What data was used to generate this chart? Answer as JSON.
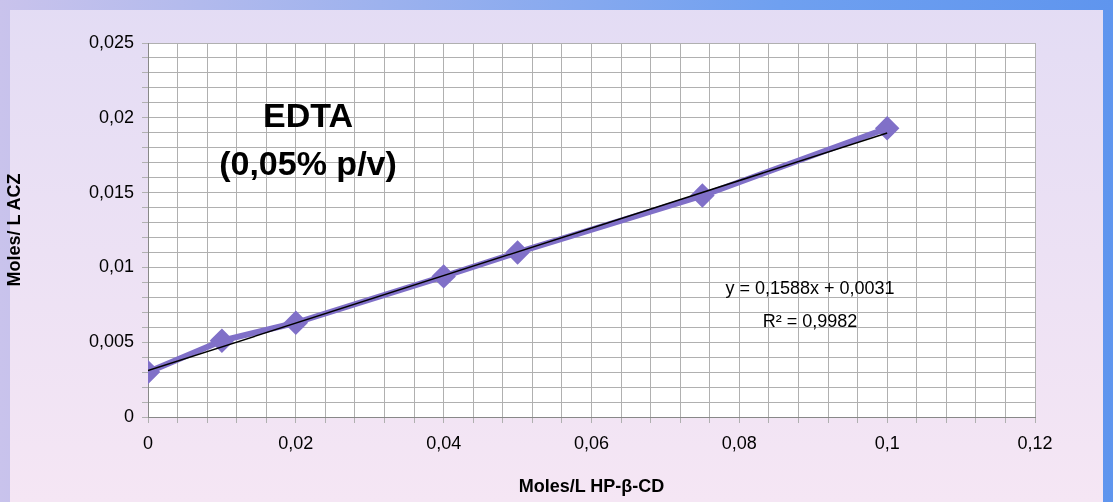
{
  "chart_data": {
    "type": "line",
    "title": "EDTA",
    "subtitle": "(0,05% p/v)",
    "xlabel": "Moles/L HP-β-CD",
    "ylabel": "Moles/ L ACZ",
    "x": [
      0,
      0.01,
      0.02,
      0.04,
      0.05,
      0.075,
      0.1
    ],
    "series": [
      {
        "color": "#8070c8",
        "values": [
          0.003,
          0.0051,
          0.0063,
          0.0094,
          0.011,
          0.0148,
          0.0193
        ],
        "marker": "diamond"
      },
      {
        "type": "line",
        "color": "#000000",
        "x": [
          0,
          0.1
        ],
        "values": [
          0.0031,
          0.01898
        ],
        "marker": "none"
      }
    ],
    "annotations": [
      "y = 0,1588x + 0,0031",
      "R² = 0,9982"
    ],
    "xlim": [
      0,
      0.12
    ],
    "xticks": [
      {
        "value": 0,
        "label": "0"
      },
      {
        "value": 0.004,
        "label": null
      },
      {
        "value": 0.008,
        "label": null
      },
      {
        "value": 0.012,
        "label": null
      },
      {
        "value": 0.016,
        "label": null
      },
      {
        "value": 0.02,
        "label": "0,02"
      },
      {
        "value": 0.024,
        "label": null
      },
      {
        "value": 0.028,
        "label": null
      },
      {
        "value": 0.032,
        "label": null
      },
      {
        "value": 0.036,
        "label": null
      },
      {
        "value": 0.04,
        "label": "0,04"
      },
      {
        "value": 0.044,
        "label": null
      },
      {
        "value": 0.048,
        "label": null
      },
      {
        "value": 0.052,
        "label": null
      },
      {
        "value": 0.056,
        "label": null
      },
      {
        "value": 0.06,
        "label": "0,06"
      },
      {
        "value": 0.064,
        "label": null
      },
      {
        "value": 0.068,
        "label": null
      },
      {
        "value": 0.072,
        "label": null
      },
      {
        "value": 0.076,
        "label": null
      },
      {
        "value": 0.08,
        "label": "0,08"
      },
      {
        "value": 0.084,
        "label": null
      },
      {
        "value": 0.088,
        "label": null
      },
      {
        "value": 0.092,
        "label": null
      },
      {
        "value": 0.096,
        "label": null
      },
      {
        "value": 0.1,
        "label": "0,1"
      },
      {
        "value": 0.104,
        "label": null
      },
      {
        "value": 0.108,
        "label": null
      },
      {
        "value": 0.112,
        "label": null
      },
      {
        "value": 0.116,
        "label": null
      },
      {
        "value": 0.12,
        "label": "0,12"
      }
    ],
    "ylim": [
      0,
      0.025
    ],
    "yticks": [
      {
        "value": 0,
        "label": "0"
      },
      {
        "value": 0.001,
        "label": null
      },
      {
        "value": 0.002,
        "label": null
      },
      {
        "value": 0.003,
        "label": null
      },
      {
        "value": 0.004,
        "label": null
      },
      {
        "value": 0.005,
        "label": "0,005"
      },
      {
        "value": 0.006,
        "label": null
      },
      {
        "value": 0.007,
        "label": null
      },
      {
        "value": 0.008,
        "label": null
      },
      {
        "value": 0.009,
        "label": null
      },
      {
        "value": 0.01,
        "label": "0,01"
      },
      {
        "value": 0.011,
        "label": null
      },
      {
        "value": 0.012,
        "label": null
      },
      {
        "value": 0.013,
        "label": null
      },
      {
        "value": 0.014,
        "label": null
      },
      {
        "value": 0.015,
        "label": "0,015"
      },
      {
        "value": 0.016,
        "label": null
      },
      {
        "value": 0.017,
        "label": null
      },
      {
        "value": 0.018,
        "label": null
      },
      {
        "value": 0.019,
        "label": null
      },
      {
        "value": 0.02,
        "label": "0,02"
      },
      {
        "value": 0.021,
        "label": null
      },
      {
        "value": 0.022,
        "label": null
      },
      {
        "value": 0.023,
        "label": null
      },
      {
        "value": 0.024,
        "label": null
      },
      {
        "value": 0.025,
        "label": "0,025"
      }
    ],
    "grid": true,
    "legend": false
  }
}
